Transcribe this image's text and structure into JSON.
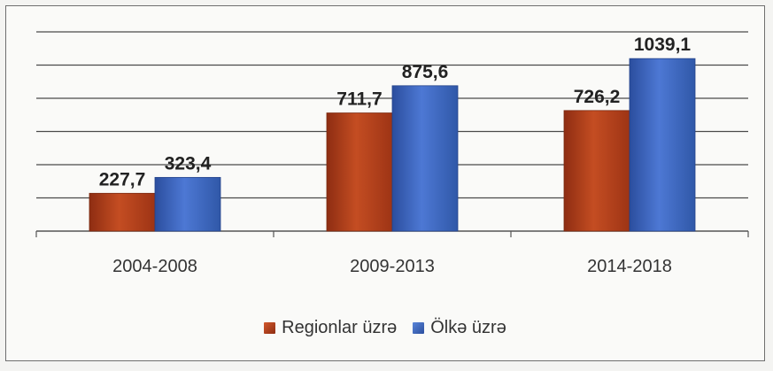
{
  "chart_data": {
    "type": "bar",
    "categories": [
      "2004-2008",
      "2009-2013",
      "2014-2018"
    ],
    "series": [
      {
        "name": "Regionlar üzrə",
        "values": [
          227.7,
          711.7,
          726.2
        ],
        "labels": [
          "227,7",
          "711,7",
          "726,2"
        ],
        "color": "#b8431c"
      },
      {
        "name": "Ölkə üzrə",
        "values": [
          323.4,
          875.6,
          1039.1
        ],
        "labels": [
          "323,4",
          "875,6",
          "1039,1"
        ],
        "color": "#3f66c4"
      }
    ],
    "ylim": [
      0,
      1200
    ],
    "grid": true,
    "legend_position": "bottom"
  }
}
